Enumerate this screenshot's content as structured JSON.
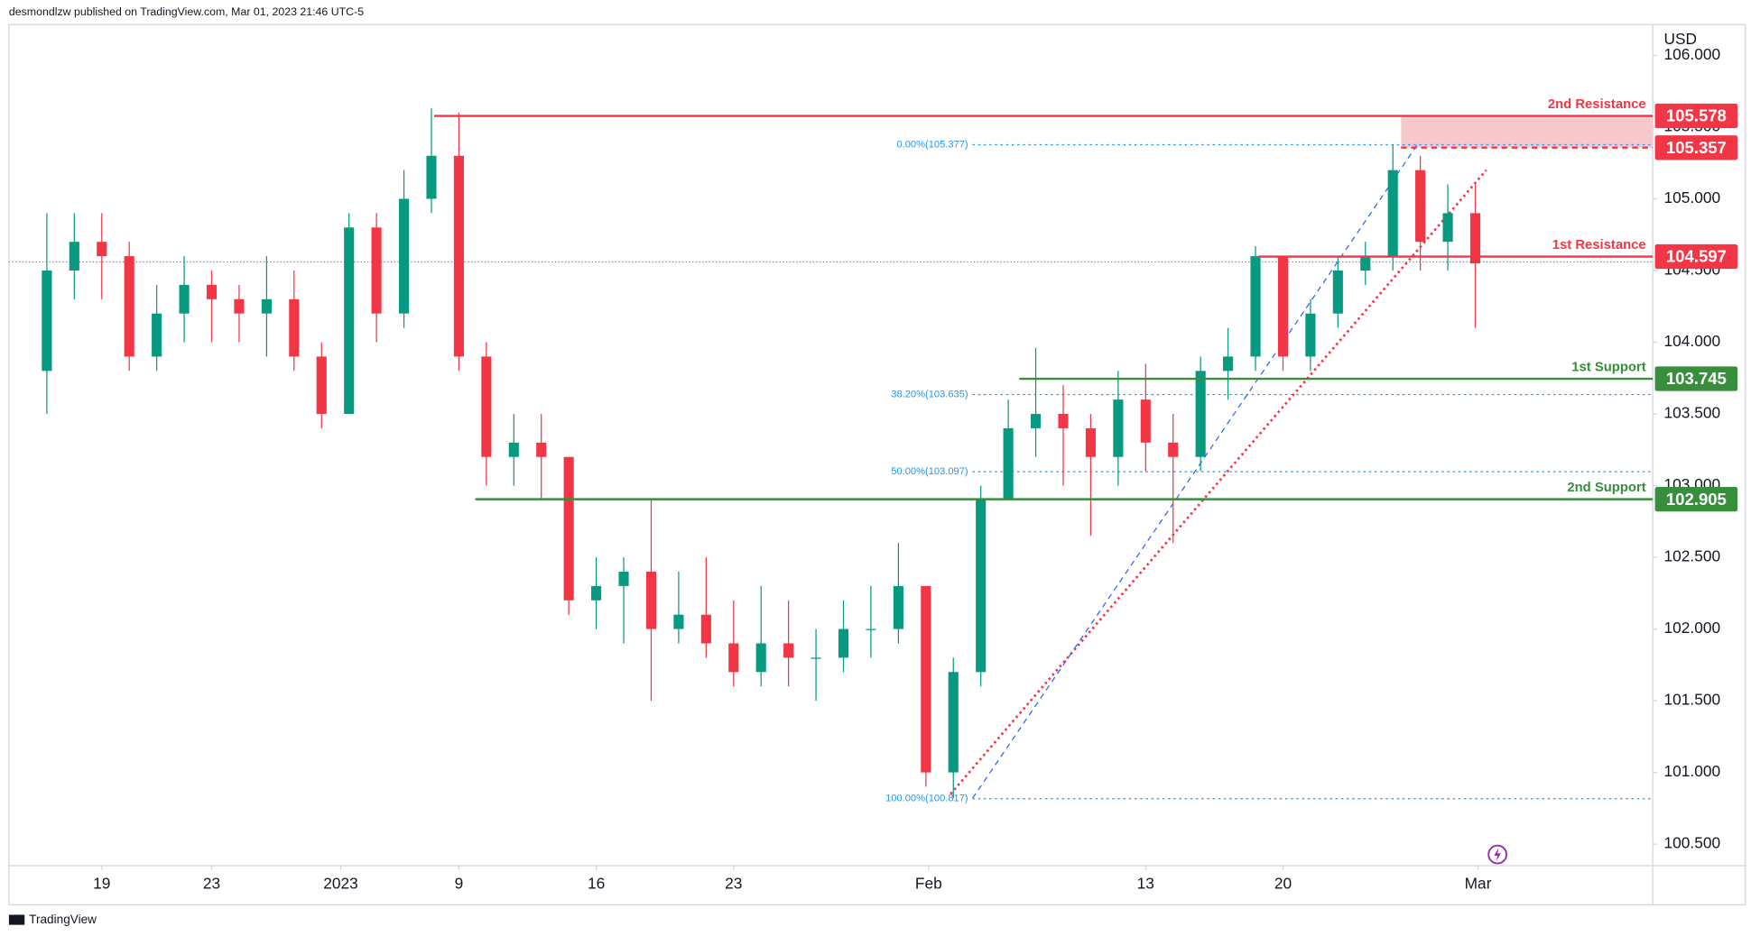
{
  "chart_data": {
    "type": "candlestick",
    "header": "desmondlzw published on TradingView.com, Mar 01, 2023 21:46 UTC-5",
    "footer": "TradingView",
    "currency": "USD",
    "ylim": [
      100.35,
      106.215
    ],
    "yticks": [
      {
        "value": 100.5,
        "label": "100.500"
      },
      {
        "value": 101,
        "label": "101.000"
      },
      {
        "value": 101.5,
        "label": "101.500"
      },
      {
        "value": 102,
        "label": "102.000"
      },
      {
        "value": 102.5,
        "label": "102.500"
      },
      {
        "value": 103,
        "label": "103.000"
      },
      {
        "value": 103.5,
        "label": "103.500"
      },
      {
        "value": 104,
        "label": "104.000"
      },
      {
        "value": 104.5,
        "label": "104.500"
      },
      {
        "value": 105,
        "label": "105.000"
      },
      {
        "value": 105.5,
        "label": "105.500"
      },
      {
        "value": 106,
        "label": "106.000"
      }
    ],
    "xlim": [
      -1.38,
      58.46
    ],
    "xticks": [
      {
        "value": 2,
        "label": "19"
      },
      {
        "value": 6,
        "label": "23"
      },
      {
        "value": 10.7,
        "label": "2023"
      },
      {
        "value": 15,
        "label": "9"
      },
      {
        "value": 20,
        "label": "16"
      },
      {
        "value": 25,
        "label": "23"
      },
      {
        "value": 32.1,
        "label": "Feb"
      },
      {
        "value": 40,
        "label": "13"
      },
      {
        "value": 45,
        "label": "20"
      },
      {
        "value": 52.1,
        "label": "Mar"
      }
    ],
    "up_color": "#089981",
    "down_color": "#f23645",
    "open": [
      103.8,
      104.5,
      104.7,
      104.6,
      103.9,
      104.2,
      104.4,
      104.3,
      104.2,
      104.3,
      103.9,
      103.5,
      104.8,
      104.2,
      105.0,
      105.3,
      103.9,
      103.2,
      103.3,
      103.2,
      102.2,
      102.3,
      102.4,
      102.0,
      102.1,
      101.9,
      101.7,
      101.9,
      101.8,
      101.8,
      102.0,
      102.0,
      102.3,
      101.0,
      101.7,
      102.9,
      103.4,
      103.5,
      103.4,
      103.2,
      103.6,
      103.3,
      103.2,
      103.8,
      103.9,
      104.6,
      103.9,
      104.2,
      104.5,
      104.6,
      105.2,
      104.7,
      104.9
    ],
    "high": [
      104.9,
      104.9,
      104.9,
      104.7,
      104.4,
      104.6,
      104.5,
      104.4,
      104.6,
      104.5,
      104.0,
      104.9,
      104.9,
      105.2,
      105.63,
      105.6,
      104.0,
      103.5,
      103.5,
      103.2,
      102.5,
      102.5,
      102.9,
      102.4,
      102.5,
      102.2,
      102.3,
      102.2,
      102.0,
      102.2,
      102.3,
      102.6,
      102.3,
      101.8,
      103.0,
      103.6,
      103.96,
      103.7,
      103.5,
      103.8,
      103.85,
      103.5,
      103.9,
      104.1,
      104.67,
      104.6,
      104.3,
      104.6,
      104.7,
      105.38,
      105.3,
      105.1,
      105.1
    ],
    "low": [
      103.5,
      104.3,
      104.3,
      103.8,
      103.8,
      104.0,
      104.0,
      104.0,
      103.9,
      103.8,
      103.4,
      103.5,
      104.0,
      104.1,
      104.9,
      103.8,
      103.0,
      103.0,
      102.9,
      102.1,
      102.0,
      101.9,
      101.5,
      101.9,
      101.8,
      101.6,
      101.6,
      101.6,
      101.5,
      101.7,
      101.8,
      101.9,
      100.9,
      100.82,
      101.6,
      102.9,
      103.2,
      103.0,
      102.65,
      103.0,
      103.1,
      102.6,
      103.1,
      103.6,
      103.8,
      103.8,
      103.8,
      104.1,
      104.4,
      104.5,
      104.5,
      104.5,
      104.1
    ],
    "close": [
      104.5,
      104.7,
      104.6,
      103.9,
      104.2,
      104.4,
      104.3,
      104.2,
      104.3,
      103.9,
      103.5,
      104.8,
      104.2,
      105.0,
      105.3,
      103.9,
      103.2,
      103.3,
      103.2,
      102.2,
      102.3,
      102.4,
      102.0,
      102.1,
      101.9,
      101.7,
      101.9,
      101.8,
      101.8,
      102.0,
      102.0,
      102.3,
      101.0,
      101.7,
      102.9,
      103.4,
      103.5,
      103.4,
      103.2,
      103.6,
      103.3,
      103.2,
      103.8,
      103.9,
      104.6,
      103.9,
      104.2,
      104.5,
      104.6,
      105.2,
      104.7,
      104.9,
      104.55
    ],
    "last_price": 104.56,
    "levels": [
      {
        "label": "2nd Resistance",
        "value": 105.578,
        "value_label": "105.578",
        "color": "#f23645",
        "from": 14.1,
        "style": "solid"
      },
      {
        "value": 105.357,
        "value_label": "105.357",
        "color": "#f23645",
        "from": 49.3,
        "style": "dashed"
      },
      {
        "label": "1st Resistance",
        "value": 104.597,
        "value_label": "104.597",
        "color": "#f23645",
        "from": 44.1,
        "style": "solid"
      },
      {
        "label": "1st Support",
        "value": 103.745,
        "value_label": "103.745",
        "color": "#388e3c",
        "from": 35.4,
        "style": "solid"
      },
      {
        "label": "2nd Support",
        "value": 102.905,
        "value_label": "102.905",
        "color": "#388e3c",
        "from": 15.6,
        "style": "solid"
      }
    ],
    "zone": {
      "from": 49.3,
      "low": 105.357,
      "high": 105.578,
      "color": "#f7c9cc"
    },
    "fib": {
      "color": "#2196f3",
      "from": 33.7,
      "levels": [
        {
          "label": "0.00%(105.377)",
          "value": 105.377
        },
        {
          "label": "38.20%(103.635)",
          "value": 103.635
        },
        {
          "label": "50.00%(103.097)",
          "value": 103.097
        },
        {
          "label": "100.00%(100.817)",
          "value": 100.817
        }
      ]
    },
    "trendlines": [
      {
        "color": "#f23645",
        "style": "dotted",
        "points": [
          [
            32.9,
            100.85
          ],
          [
            52.4,
            105.2
          ]
        ]
      },
      {
        "color": "#2962ff",
        "style": "dashed",
        "points": [
          [
            33.7,
            100.82
          ],
          [
            49.9,
            105.38
          ]
        ]
      }
    ]
  }
}
